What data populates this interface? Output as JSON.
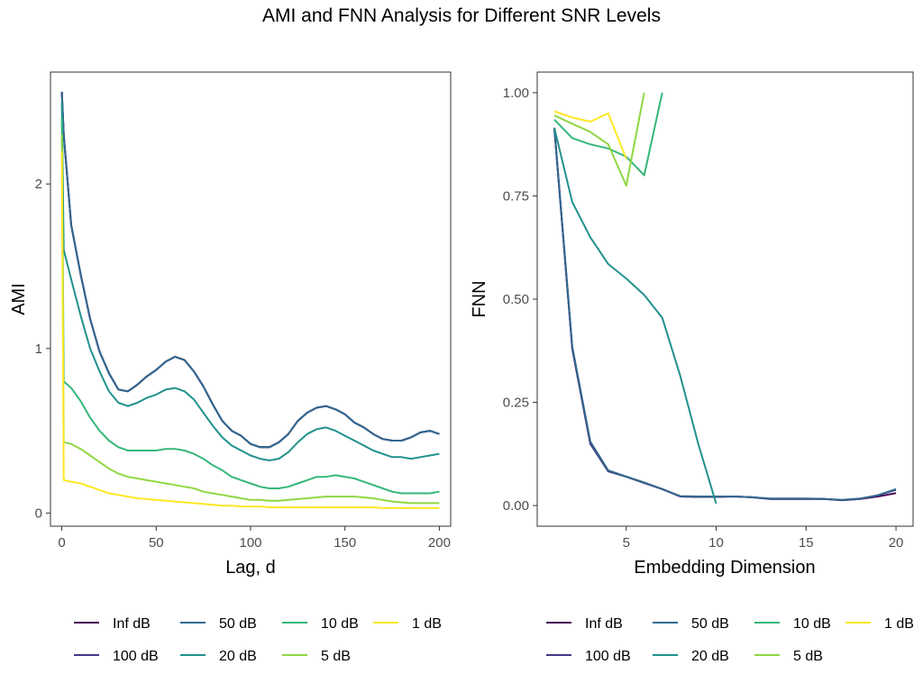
{
  "figure_title": "AMI and FNN Analysis for Different SNR Levels",
  "colors": {
    "Inf dB": "#440154",
    "100 dB": "#443983",
    "50 dB": "#31688e",
    "20 dB": "#21918c",
    "10 dB": "#35b779",
    "5 dB": "#90d743",
    "1 dB": "#fde725"
  },
  "legend": [
    "Inf dB",
    "50 dB",
    "10 dB",
    "1 dB",
    "100 dB",
    "20 dB",
    "5 dB"
  ],
  "chart_data": [
    {
      "type": "line",
      "xlabel": "Lag, d",
      "ylabel": "AMI",
      "xlim": [
        -6,
        206
      ],
      "ylim": [
        -0.08,
        2.68
      ],
      "xticks": [
        0,
        50,
        100,
        150,
        200
      ],
      "yticks": [
        0,
        1,
        2
      ],
      "grid": false,
      "legend_position": "bottom",
      "series": [
        {
          "name": "Inf dB",
          "x": [
            0,
            1,
            5,
            10,
            15,
            20,
            25,
            30,
            35,
            40,
            45,
            50,
            55,
            60,
            65,
            70,
            75,
            80,
            85,
            90,
            95,
            100,
            105,
            110,
            115,
            120,
            125,
            130,
            135,
            140,
            145,
            150,
            155,
            160,
            165,
            170,
            175,
            180,
            185,
            190,
            195,
            200
          ],
          "y": [
            2.56,
            2.3,
            1.75,
            1.45,
            1.18,
            0.98,
            0.85,
            0.75,
            0.74,
            0.78,
            0.83,
            0.87,
            0.92,
            0.95,
            0.93,
            0.86,
            0.77,
            0.66,
            0.56,
            0.5,
            0.47,
            0.42,
            0.4,
            0.4,
            0.43,
            0.48,
            0.56,
            0.61,
            0.64,
            0.65,
            0.63,
            0.6,
            0.55,
            0.52,
            0.48,
            0.45,
            0.44,
            0.44,
            0.46,
            0.49,
            0.5,
            0.48
          ]
        },
        {
          "name": "100 dB",
          "x": [
            0,
            1,
            5,
            10,
            15,
            20,
            25,
            30,
            35,
            40,
            45,
            50,
            55,
            60,
            65,
            70,
            75,
            80,
            85,
            90,
            95,
            100,
            105,
            110,
            115,
            120,
            125,
            130,
            135,
            140,
            145,
            150,
            155,
            160,
            165,
            170,
            175,
            180,
            185,
            190,
            195,
            200
          ],
          "y": [
            2.56,
            2.3,
            1.75,
            1.45,
            1.18,
            0.98,
            0.85,
            0.75,
            0.74,
            0.78,
            0.83,
            0.87,
            0.92,
            0.95,
            0.93,
            0.86,
            0.77,
            0.66,
            0.56,
            0.5,
            0.47,
            0.42,
            0.4,
            0.4,
            0.43,
            0.48,
            0.56,
            0.61,
            0.64,
            0.65,
            0.63,
            0.6,
            0.55,
            0.52,
            0.48,
            0.45,
            0.44,
            0.44,
            0.46,
            0.49,
            0.5,
            0.48
          ]
        },
        {
          "name": "50 dB",
          "x": [
            0,
            1,
            5,
            10,
            15,
            20,
            25,
            30,
            35,
            40,
            45,
            50,
            55,
            60,
            65,
            70,
            75,
            80,
            85,
            90,
            95,
            100,
            105,
            110,
            115,
            120,
            125,
            130,
            135,
            140,
            145,
            150,
            155,
            160,
            165,
            170,
            175,
            180,
            185,
            190,
            195,
            200
          ],
          "y": [
            2.56,
            2.3,
            1.75,
            1.45,
            1.18,
            0.98,
            0.85,
            0.75,
            0.74,
            0.78,
            0.83,
            0.87,
            0.92,
            0.95,
            0.93,
            0.86,
            0.77,
            0.66,
            0.56,
            0.5,
            0.47,
            0.42,
            0.4,
            0.4,
            0.43,
            0.48,
            0.56,
            0.61,
            0.64,
            0.65,
            0.63,
            0.6,
            0.55,
            0.52,
            0.48,
            0.45,
            0.44,
            0.44,
            0.46,
            0.49,
            0.5,
            0.48
          ]
        },
        {
          "name": "20 dB",
          "x": [
            0,
            1,
            5,
            10,
            15,
            20,
            25,
            30,
            35,
            40,
            45,
            50,
            55,
            60,
            65,
            70,
            75,
            80,
            85,
            90,
            95,
            100,
            105,
            110,
            115,
            120,
            125,
            130,
            135,
            140,
            145,
            150,
            155,
            160,
            165,
            170,
            175,
            180,
            185,
            190,
            195,
            200
          ],
          "y": [
            2.5,
            1.6,
            1.42,
            1.2,
            1.0,
            0.86,
            0.74,
            0.67,
            0.65,
            0.67,
            0.7,
            0.72,
            0.75,
            0.76,
            0.74,
            0.69,
            0.61,
            0.53,
            0.46,
            0.41,
            0.38,
            0.35,
            0.33,
            0.32,
            0.33,
            0.37,
            0.43,
            0.48,
            0.51,
            0.52,
            0.5,
            0.47,
            0.44,
            0.41,
            0.38,
            0.36,
            0.34,
            0.34,
            0.33,
            0.34,
            0.35,
            0.36
          ]
        },
        {
          "name": "10 dB",
          "x": [
            0,
            1,
            5,
            10,
            15,
            20,
            25,
            30,
            35,
            40,
            45,
            50,
            55,
            60,
            65,
            70,
            75,
            80,
            85,
            90,
            95,
            100,
            105,
            110,
            115,
            120,
            125,
            130,
            135,
            140,
            145,
            150,
            155,
            160,
            165,
            170,
            175,
            180,
            185,
            190,
            195,
            200
          ],
          "y": [
            2.4,
            0.8,
            0.76,
            0.68,
            0.58,
            0.5,
            0.44,
            0.4,
            0.38,
            0.38,
            0.38,
            0.38,
            0.39,
            0.39,
            0.38,
            0.36,
            0.33,
            0.29,
            0.26,
            0.22,
            0.2,
            0.18,
            0.16,
            0.15,
            0.15,
            0.16,
            0.18,
            0.2,
            0.22,
            0.22,
            0.23,
            0.22,
            0.21,
            0.19,
            0.17,
            0.15,
            0.13,
            0.12,
            0.12,
            0.12,
            0.12,
            0.13
          ]
        },
        {
          "name": "5 dB",
          "x": [
            0,
            1,
            5,
            10,
            15,
            20,
            25,
            30,
            35,
            40,
            45,
            50,
            55,
            60,
            65,
            70,
            75,
            80,
            85,
            90,
            95,
            100,
            105,
            110,
            115,
            120,
            125,
            130,
            135,
            140,
            145,
            150,
            155,
            160,
            165,
            170,
            175,
            180,
            185,
            190,
            195,
            200
          ],
          "y": [
            2.3,
            0.43,
            0.42,
            0.39,
            0.35,
            0.31,
            0.27,
            0.24,
            0.22,
            0.21,
            0.2,
            0.19,
            0.18,
            0.17,
            0.16,
            0.15,
            0.13,
            0.12,
            0.11,
            0.1,
            0.09,
            0.08,
            0.08,
            0.075,
            0.075,
            0.08,
            0.085,
            0.09,
            0.095,
            0.1,
            0.1,
            0.1,
            0.1,
            0.095,
            0.09,
            0.08,
            0.07,
            0.065,
            0.06,
            0.06,
            0.06,
            0.06
          ]
        },
        {
          "name": "1 dB",
          "x": [
            0,
            1,
            5,
            10,
            15,
            20,
            25,
            30,
            35,
            40,
            45,
            50,
            55,
            60,
            65,
            70,
            75,
            80,
            85,
            90,
            95,
            100,
            105,
            110,
            115,
            120,
            125,
            130,
            135,
            140,
            145,
            150,
            155,
            160,
            165,
            170,
            175,
            180,
            185,
            190,
            195,
            200
          ],
          "y": [
            2.2,
            0.2,
            0.19,
            0.18,
            0.16,
            0.14,
            0.12,
            0.11,
            0.1,
            0.09,
            0.085,
            0.08,
            0.075,
            0.07,
            0.065,
            0.06,
            0.055,
            0.05,
            0.045,
            0.045,
            0.04,
            0.04,
            0.04,
            0.035,
            0.035,
            0.035,
            0.035,
            0.035,
            0.035,
            0.035,
            0.035,
            0.035,
            0.035,
            0.035,
            0.035,
            0.03,
            0.03,
            0.03,
            0.03,
            0.03,
            0.03,
            0.03
          ]
        }
      ]
    },
    {
      "type": "line",
      "xlabel": "Embedding Dimension",
      "ylabel": "FNN",
      "xlim": [
        0.05,
        20.95
      ],
      "ylim": [
        -0.05,
        1.05
      ],
      "xticks": [
        5,
        10,
        15,
        20
      ],
      "yticks": [
        0,
        0.25,
        0.5,
        0.75,
        1
      ],
      "ytick_labels": [
        "0.00",
        "0.25",
        "0.50",
        "0.75",
        "1.00"
      ],
      "grid": false,
      "legend_position": "bottom",
      "series": [
        {
          "name": "Inf dB",
          "x": [
            1,
            2,
            3,
            4,
            5,
            6,
            7,
            8,
            9,
            10,
            11,
            12,
            13,
            14,
            15,
            16,
            17,
            18,
            19,
            20
          ],
          "y": [
            0.915,
            0.38,
            0.15,
            0.083,
            0.07,
            0.055,
            0.04,
            0.022,
            0.021,
            0.021,
            0.022,
            0.02,
            0.016,
            0.016,
            0.016,
            0.016,
            0.013,
            0.016,
            0.022,
            0.03
          ]
        },
        {
          "name": "100 dB",
          "x": [
            1,
            2,
            3,
            4,
            5,
            6,
            7,
            8,
            9,
            10,
            11,
            12,
            13,
            14,
            15,
            16,
            17,
            18,
            19,
            20
          ],
          "y": [
            0.915,
            0.38,
            0.15,
            0.083,
            0.07,
            0.055,
            0.04,
            0.022,
            0.021,
            0.021,
            0.022,
            0.02,
            0.016,
            0.016,
            0.016,
            0.016,
            0.013,
            0.016,
            0.025,
            0.038
          ]
        },
        {
          "name": "50 dB",
          "x": [
            1,
            2,
            3,
            4,
            5,
            6,
            7,
            8,
            9,
            10,
            11,
            12,
            13,
            14,
            15,
            16,
            17,
            18,
            19,
            20
          ],
          "y": [
            0.915,
            0.385,
            0.155,
            0.085,
            0.07,
            0.056,
            0.04,
            0.023,
            0.022,
            0.022,
            0.022,
            0.02,
            0.017,
            0.017,
            0.017,
            0.016,
            0.014,
            0.017,
            0.025,
            0.04
          ]
        },
        {
          "name": "20 dB",
          "x": [
            1,
            2,
            3,
            4,
            5,
            6,
            7,
            8,
            9,
            10
          ],
          "y": [
            0.915,
            0.735,
            0.65,
            0.585,
            0.55,
            0.51,
            0.455,
            0.315,
            0.15,
            0.005
          ]
        },
        {
          "name": "10 dB",
          "x": [
            1,
            2,
            3,
            4,
            5,
            6,
            7
          ],
          "y": [
            0.935,
            0.89,
            0.875,
            0.865,
            0.845,
            0.8,
            1.0
          ]
        },
        {
          "name": "5 dB",
          "x": [
            1,
            2,
            3,
            4,
            5,
            6
          ],
          "y": [
            0.945,
            0.925,
            0.905,
            0.875,
            0.775,
            1.0
          ]
        },
        {
          "name": "1 dB",
          "x": [
            1,
            2,
            3,
            4,
            5
          ],
          "y": [
            0.955,
            0.94,
            0.93,
            0.95,
            0.84
          ]
        }
      ]
    }
  ]
}
